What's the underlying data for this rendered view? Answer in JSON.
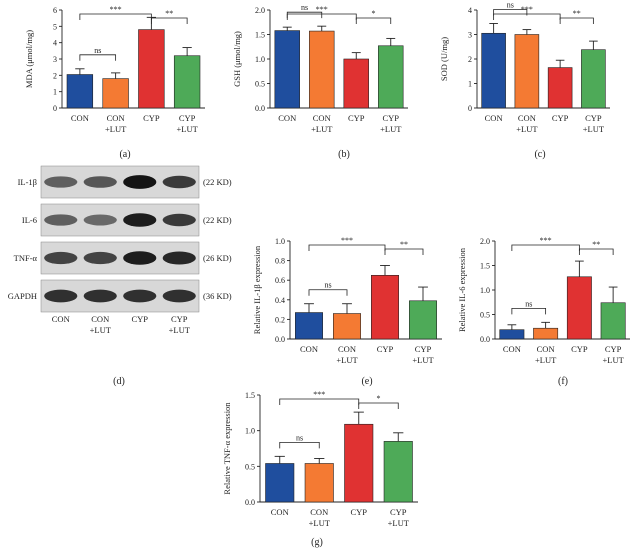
{
  "figure": {
    "panel_labels": [
      "(a)",
      "(b)",
      "(c)",
      "(d)",
      "(e)",
      "(f)",
      "(g)"
    ],
    "categories": [
      {
        "line1": "CON",
        "line2": ""
      },
      {
        "line1": "CON",
        "line2": "+LUT"
      },
      {
        "line1": "CYP",
        "line2": ""
      },
      {
        "line1": "CYP",
        "line2": "+LUT"
      }
    ],
    "bar_colors": [
      "#1f4e9e",
      "#f47a33",
      "#e03232",
      "#4eaa58"
    ]
  },
  "chart_data": [
    {
      "id": "a",
      "type": "bar",
      "ylabel": "MDA (μmol/mg)",
      "ylim": [
        0,
        6
      ],
      "yticks": [
        "0",
        "1",
        "2",
        "3",
        "4",
        "5",
        "6"
      ],
      "categories": [
        "CON",
        "CON +LUT",
        "CYP",
        "CYP +LUT"
      ],
      "values": [
        2.05,
        1.8,
        4.8,
        3.2
      ],
      "errors": [
        0.35,
        0.35,
        0.75,
        0.5
      ],
      "significance": [
        {
          "from": 0,
          "to": 2,
          "label": "***"
        },
        {
          "from": 2,
          "to": 3,
          "label": "**"
        },
        {
          "from": 0,
          "to": 1,
          "label": "ns"
        }
      ]
    },
    {
      "id": "b",
      "type": "bar",
      "ylabel": "GSH (μmol/mg)",
      "ylim": [
        0,
        2.0
      ],
      "yticks": [
        "0.0",
        "0.5",
        "1.0",
        "1.5",
        "2.0"
      ],
      "categories": [
        "CON",
        "CON +LUT",
        "CYP",
        "CYP +LUT"
      ],
      "values": [
        1.58,
        1.57,
        1.0,
        1.27
      ],
      "errors": [
        0.07,
        0.1,
        0.13,
        0.15
      ],
      "significance": [
        {
          "from": 0,
          "to": 1,
          "label": "ns"
        },
        {
          "from": 0,
          "to": 2,
          "label": "***"
        },
        {
          "from": 2,
          "to": 3,
          "label": "*"
        }
      ]
    },
    {
      "id": "c",
      "type": "bar",
      "ylabel": "SOD (U/mg)",
      "ylim": [
        0,
        4
      ],
      "yticks": [
        "0",
        "1",
        "2",
        "3",
        "4"
      ],
      "categories": [
        "CON",
        "CON +LUT",
        "CYP",
        "CYP +LUT"
      ],
      "values": [
        3.05,
        3.0,
        1.65,
        2.38
      ],
      "errors": [
        0.4,
        0.2,
        0.3,
        0.35
      ],
      "significance": [
        {
          "from": 0,
          "to": 1,
          "label": "ns"
        },
        {
          "from": 0,
          "to": 2,
          "label": "***"
        },
        {
          "from": 2,
          "to": 3,
          "label": "**"
        }
      ]
    },
    {
      "id": "e",
      "type": "bar",
      "ylabel": "Relative IL-1β expression",
      "ylim": [
        0,
        1.0
      ],
      "yticks": [
        "0.0",
        "0.2",
        "0.4",
        "0.6",
        "0.8",
        "1.0"
      ],
      "categories": [
        "CON",
        "CON +LUT",
        "CYP",
        "CYP +LUT"
      ],
      "values": [
        0.27,
        0.26,
        0.65,
        0.39
      ],
      "errors": [
        0.09,
        0.1,
        0.1,
        0.14
      ],
      "significance": [
        {
          "from": 0,
          "to": 2,
          "label": "***"
        },
        {
          "from": 2,
          "to": 3,
          "label": "**"
        },
        {
          "from": 0,
          "to": 1,
          "label": "ns"
        }
      ]
    },
    {
      "id": "f",
      "type": "bar",
      "ylabel": "Relative IL-6 expression",
      "ylim": [
        0,
        2.0
      ],
      "yticks": [
        "0.0",
        "0.5",
        "1.0",
        "1.5",
        "2.0"
      ],
      "categories": [
        "CON",
        "CON +LUT",
        "CYP",
        "CYP +LUT"
      ],
      "values": [
        0.19,
        0.22,
        1.27,
        0.74
      ],
      "errors": [
        0.1,
        0.12,
        0.32,
        0.32
      ],
      "significance": [
        {
          "from": 0,
          "to": 2,
          "label": "***"
        },
        {
          "from": 2,
          "to": 3,
          "label": "**"
        },
        {
          "from": 0,
          "to": 1,
          "label": "ns"
        }
      ]
    },
    {
      "id": "g",
      "type": "bar",
      "ylabel": "Relative TNF-α expression",
      "ylim": [
        0,
        1.5
      ],
      "yticks": [
        "0.0",
        "0.5",
        "1.0",
        "1.5"
      ],
      "categories": [
        "CON",
        "CON +LUT",
        "CYP",
        "CYP +LUT"
      ],
      "values": [
        0.54,
        0.54,
        1.09,
        0.85
      ],
      "errors": [
        0.1,
        0.07,
        0.17,
        0.12
      ],
      "significance": [
        {
          "from": 0,
          "to": 2,
          "label": "***"
        },
        {
          "from": 2,
          "to": 3,
          "label": "*"
        },
        {
          "from": 0,
          "to": 1,
          "label": "ns"
        }
      ]
    }
  ],
  "western_blot": {
    "lanes": 4,
    "rows": [
      {
        "protein": "IL-1β",
        "size": "(22 KD)",
        "intensity": [
          0.55,
          0.6,
          0.95,
          0.75
        ]
      },
      {
        "protein": "IL-6",
        "size": "(22 KD)",
        "intensity": [
          0.55,
          0.5,
          0.9,
          0.75
        ]
      },
      {
        "protein": "TNF-α",
        "size": "(26 KD)",
        "intensity": [
          0.7,
          0.7,
          0.9,
          0.85
        ]
      },
      {
        "protein": "GAPDH",
        "size": "(36 KD)",
        "intensity": [
          0.8,
          0.8,
          0.8,
          0.8
        ]
      }
    ]
  }
}
